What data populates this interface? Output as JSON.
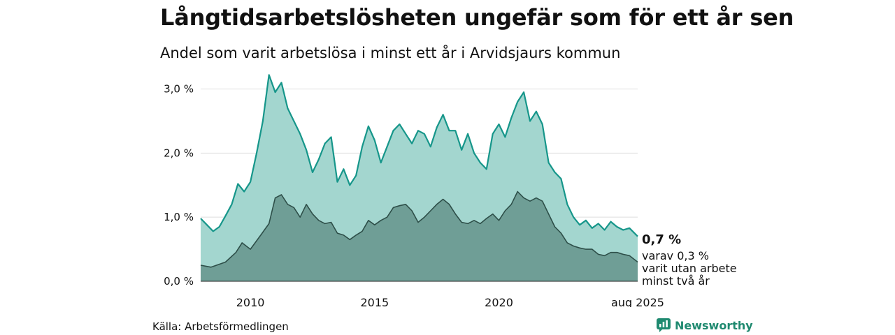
{
  "header": {
    "title": "Långtidsarbetslösheten ungefär som för ett år sen",
    "subtitle": "Andel som varit arbetslösa i minst ett år i Arvidsjaurs kommun"
  },
  "footer": {
    "source": "Källa: Arbetsförmedlingen",
    "brand": "Newsworthy",
    "brand_icon": "bar-chart-icon"
  },
  "colors": {
    "total_fill": "#a3d6cf",
    "total_line": "#16968a",
    "sub_fill": "#6f9e96",
    "sub_line": "#2e4f49",
    "grid": "#dddddd",
    "brand": "#1f8a70"
  },
  "chart_data": {
    "type": "area",
    "title": "Långtidsarbetslösheten ungefär som för ett år sen",
    "subtitle": "Andel som varit arbetslösa i minst ett år i Arvidsjaurs kommun",
    "x_start": "2008-01",
    "x_end": "2025-08",
    "ylim": [
      0,
      3.3
    ],
    "y_ticks": [
      {
        "value": 0,
        "label": "0,0 %"
      },
      {
        "value": 1,
        "label": "1,0 %"
      },
      {
        "value": 2,
        "label": "2,0 %"
      },
      {
        "value": 3,
        "label": "3,0 %"
      }
    ],
    "x_ticks": [
      {
        "date": "2010-01",
        "label": "2010"
      },
      {
        "date": "2015-01",
        "label": "2015"
      },
      {
        "date": "2020-01",
        "label": "2020"
      },
      {
        "date": "2025-08",
        "label": "aug 2025"
      }
    ],
    "grid": true,
    "series": [
      {
        "name": "arbetslösa i minst ett år",
        "points": [
          [
            "2008-01",
            0.98
          ],
          [
            "2008-04",
            0.88
          ],
          [
            "2008-07",
            0.78
          ],
          [
            "2008-10",
            0.85
          ],
          [
            "2009-01",
            1.02
          ],
          [
            "2009-04",
            1.2
          ],
          [
            "2009-07",
            1.52
          ],
          [
            "2009-10",
            1.4
          ],
          [
            "2010-01",
            1.55
          ],
          [
            "2010-04",
            2.0
          ],
          [
            "2010-07",
            2.5
          ],
          [
            "2010-10",
            3.22
          ],
          [
            "2011-01",
            2.95
          ],
          [
            "2011-04",
            3.1
          ],
          [
            "2011-07",
            2.7
          ],
          [
            "2011-10",
            2.5
          ],
          [
            "2012-01",
            2.3
          ],
          [
            "2012-04",
            2.05
          ],
          [
            "2012-07",
            1.7
          ],
          [
            "2012-10",
            1.9
          ],
          [
            "2013-01",
            2.15
          ],
          [
            "2013-04",
            2.25
          ],
          [
            "2013-07",
            1.55
          ],
          [
            "2013-10",
            1.75
          ],
          [
            "2014-01",
            1.5
          ],
          [
            "2014-04",
            1.65
          ],
          [
            "2014-07",
            2.1
          ],
          [
            "2014-10",
            2.42
          ],
          [
            "2015-01",
            2.2
          ],
          [
            "2015-04",
            1.85
          ],
          [
            "2015-07",
            2.1
          ],
          [
            "2015-10",
            2.35
          ],
          [
            "2016-01",
            2.45
          ],
          [
            "2016-04",
            2.3
          ],
          [
            "2016-07",
            2.15
          ],
          [
            "2016-10",
            2.35
          ],
          [
            "2017-01",
            2.3
          ],
          [
            "2017-04",
            2.1
          ],
          [
            "2017-07",
            2.4
          ],
          [
            "2017-10",
            2.6
          ],
          [
            "2018-01",
            2.35
          ],
          [
            "2018-04",
            2.35
          ],
          [
            "2018-07",
            2.05
          ],
          [
            "2018-10",
            2.3
          ],
          [
            "2019-01",
            2.0
          ],
          [
            "2019-04",
            1.85
          ],
          [
            "2019-07",
            1.75
          ],
          [
            "2019-10",
            2.3
          ],
          [
            "2020-01",
            2.45
          ],
          [
            "2020-04",
            2.25
          ],
          [
            "2020-07",
            2.55
          ],
          [
            "2020-10",
            2.8
          ],
          [
            "2021-01",
            2.95
          ],
          [
            "2021-04",
            2.5
          ],
          [
            "2021-07",
            2.65
          ],
          [
            "2021-10",
            2.45
          ],
          [
            "2022-01",
            1.85
          ],
          [
            "2022-04",
            1.7
          ],
          [
            "2022-07",
            1.6
          ],
          [
            "2022-10",
            1.2
          ],
          [
            "2023-01",
            1.0
          ],
          [
            "2023-04",
            0.88
          ],
          [
            "2023-07",
            0.95
          ],
          [
            "2023-10",
            0.83
          ],
          [
            "2024-01",
            0.9
          ],
          [
            "2024-04",
            0.8
          ],
          [
            "2024-07",
            0.93
          ],
          [
            "2024-10",
            0.85
          ],
          [
            "2025-01",
            0.8
          ],
          [
            "2025-04",
            0.83
          ],
          [
            "2025-08",
            0.7
          ]
        ]
      },
      {
        "name": "utan arbete minst två år",
        "points": [
          [
            "2008-01",
            0.25
          ],
          [
            "2008-06",
            0.22
          ],
          [
            "2009-01",
            0.3
          ],
          [
            "2009-06",
            0.45
          ],
          [
            "2009-09",
            0.6
          ],
          [
            "2010-01",
            0.5
          ],
          [
            "2010-06",
            0.72
          ],
          [
            "2010-10",
            0.9
          ],
          [
            "2011-01",
            1.3
          ],
          [
            "2011-04",
            1.35
          ],
          [
            "2011-07",
            1.2
          ],
          [
            "2011-10",
            1.15
          ],
          [
            "2012-01",
            1.0
          ],
          [
            "2012-04",
            1.2
          ],
          [
            "2012-07",
            1.05
          ],
          [
            "2012-10",
            0.95
          ],
          [
            "2013-01",
            0.9
          ],
          [
            "2013-04",
            0.92
          ],
          [
            "2013-07",
            0.75
          ],
          [
            "2013-10",
            0.72
          ],
          [
            "2014-01",
            0.65
          ],
          [
            "2014-04",
            0.72
          ],
          [
            "2014-07",
            0.78
          ],
          [
            "2014-10",
            0.95
          ],
          [
            "2015-01",
            0.88
          ],
          [
            "2015-04",
            0.95
          ],
          [
            "2015-07",
            1.0
          ],
          [
            "2015-10",
            1.15
          ],
          [
            "2016-01",
            1.18
          ],
          [
            "2016-04",
            1.2
          ],
          [
            "2016-07",
            1.1
          ],
          [
            "2016-10",
            0.92
          ],
          [
            "2017-01",
            1.0
          ],
          [
            "2017-04",
            1.1
          ],
          [
            "2017-07",
            1.2
          ],
          [
            "2017-10",
            1.28
          ],
          [
            "2018-01",
            1.2
          ],
          [
            "2018-04",
            1.05
          ],
          [
            "2018-07",
            0.92
          ],
          [
            "2018-10",
            0.9
          ],
          [
            "2019-01",
            0.95
          ],
          [
            "2019-04",
            0.9
          ],
          [
            "2019-07",
            0.98
          ],
          [
            "2019-10",
            1.05
          ],
          [
            "2020-01",
            0.95
          ],
          [
            "2020-04",
            1.1
          ],
          [
            "2020-07",
            1.2
          ],
          [
            "2020-10",
            1.4
          ],
          [
            "2021-01",
            1.3
          ],
          [
            "2021-04",
            1.25
          ],
          [
            "2021-07",
            1.3
          ],
          [
            "2021-10",
            1.25
          ],
          [
            "2022-01",
            1.05
          ],
          [
            "2022-04",
            0.85
          ],
          [
            "2022-07",
            0.75
          ],
          [
            "2022-10",
            0.6
          ],
          [
            "2023-01",
            0.55
          ],
          [
            "2023-04",
            0.52
          ],
          [
            "2023-07",
            0.5
          ],
          [
            "2023-10",
            0.5
          ],
          [
            "2024-01",
            0.42
          ],
          [
            "2024-04",
            0.4
          ],
          [
            "2024-07",
            0.45
          ],
          [
            "2024-10",
            0.45
          ],
          [
            "2025-01",
            0.42
          ],
          [
            "2025-04",
            0.4
          ],
          [
            "2025-08",
            0.3
          ]
        ]
      }
    ],
    "end_labels": {
      "total": "0,7 %",
      "sub_line1": "varav 0,3 %",
      "sub_line2": "varit utan arbete",
      "sub_line3": "minst två år"
    }
  }
}
